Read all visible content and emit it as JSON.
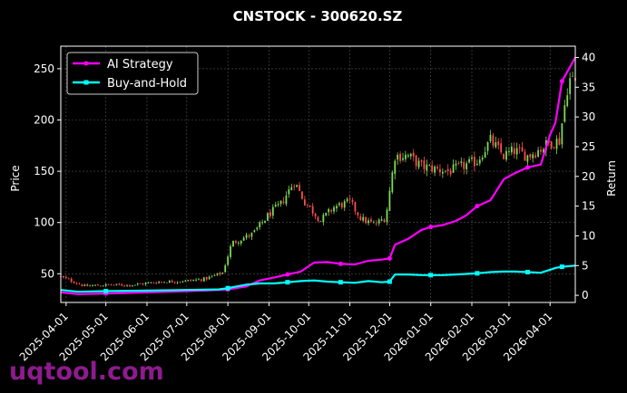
{
  "chart_data": {
    "type": "line",
    "title": "CNSTOCK - 300620.SZ",
    "watermark": "uqtool.com",
    "ylabel_left": "Price",
    "ylabel_right": "Return",
    "ylim_left": [
      22,
      272
    ],
    "ylim_right": [
      -1.2,
      41.9
    ],
    "yticks_left": [
      50,
      100,
      150,
      200,
      250
    ],
    "yticks_right": [
      0,
      5,
      10,
      15,
      20,
      25,
      30,
      35,
      40
    ],
    "xlim": [
      "2025-03-28",
      "2026-04-20"
    ],
    "xticks": [
      "2025-04-01",
      "2025-05-01",
      "2025-06-01",
      "2025-07-01",
      "2025-08-01",
      "2025-09-01",
      "2025-10-01",
      "2025-11-01",
      "2025-12-01",
      "2026-01-01",
      "2026-02-01",
      "2026-03-01",
      "2026-04-01"
    ],
    "grid": true,
    "legend_position": "top-left",
    "colors": {
      "ai": "#ff00ff",
      "bh": "#00ffff",
      "up": "#7ed957",
      "down": "#ff4d4d"
    },
    "series": [
      {
        "name": "AI Strategy",
        "x": [
          "2025-03-28",
          "2025-04-10",
          "2025-05-01",
          "2025-06-01",
          "2025-07-01",
          "2025-07-25",
          "2025-08-01",
          "2025-08-15",
          "2025-08-25",
          "2025-09-05",
          "2025-09-15",
          "2025-09-25",
          "2025-10-05",
          "2025-10-15",
          "2025-10-25",
          "2025-11-05",
          "2025-11-15",
          "2025-11-25",
          "2025-12-01",
          "2025-12-05",
          "2025-12-15",
          "2025-12-25",
          "2026-01-01",
          "2026-01-10",
          "2026-01-20",
          "2026-01-28",
          "2026-02-05",
          "2026-02-15",
          "2026-02-25",
          "2026-03-05",
          "2026-03-15",
          "2026-03-25",
          "2026-04-01",
          "2026-04-05",
          "2026-04-10",
          "2026-04-20"
        ],
        "values": [
          0.5,
          0.2,
          0.3,
          0.5,
          0.7,
          0.9,
          1.0,
          1.5,
          2.5,
          3.0,
          3.5,
          4.0,
          5.5,
          5.6,
          5.3,
          5.2,
          5.8,
          6.0,
          6.2,
          8.5,
          9.5,
          11.0,
          11.5,
          11.8,
          12.5,
          13.5,
          15.0,
          16.0,
          19.5,
          20.5,
          21.5,
          22.0,
          27.0,
          29.0,
          36.0,
          40.0
        ]
      },
      {
        "name": "Buy-and-Hold",
        "x": [
          "2025-03-28",
          "2025-04-10",
          "2025-05-01",
          "2025-06-01",
          "2025-07-01",
          "2025-07-25",
          "2025-08-01",
          "2025-08-15",
          "2025-08-25",
          "2025-09-05",
          "2025-09-15",
          "2025-09-25",
          "2025-10-05",
          "2025-10-15",
          "2025-10-25",
          "2025-11-05",
          "2025-11-15",
          "2025-11-25",
          "2025-12-01",
          "2025-12-05",
          "2025-12-15",
          "2025-12-25",
          "2026-01-01",
          "2026-01-10",
          "2026-01-20",
          "2026-01-28",
          "2026-02-05",
          "2026-02-15",
          "2026-02-25",
          "2026-03-05",
          "2026-03-15",
          "2026-03-25",
          "2026-04-01",
          "2026-04-05",
          "2026-04-10",
          "2026-04-20"
        ],
        "values": [
          0.9,
          0.6,
          0.7,
          0.8,
          0.9,
          1.0,
          1.2,
          1.8,
          2.0,
          2.0,
          2.2,
          2.4,
          2.5,
          2.3,
          2.2,
          2.1,
          2.4,
          2.2,
          2.3,
          3.5,
          3.5,
          3.4,
          3.4,
          3.4,
          3.5,
          3.6,
          3.7,
          3.9,
          4.0,
          4.0,
          3.9,
          3.8,
          4.3,
          4.6,
          4.8,
          5.0
        ]
      }
    ],
    "price": {
      "name": "Price",
      "x": [
        "2025-03-28",
        "2025-04-15",
        "2025-05-01",
        "2025-05-20",
        "2025-06-10",
        "2025-07-01",
        "2025-07-15",
        "2025-07-28",
        "2025-08-04",
        "2025-08-20",
        "2025-09-01",
        "2025-09-10",
        "2025-09-20",
        "2025-09-28",
        "2025-10-10",
        "2025-10-20",
        "2025-11-01",
        "2025-11-10",
        "2025-11-20",
        "2025-11-28",
        "2025-12-05",
        "2025-12-15",
        "2025-12-25",
        "2026-01-05",
        "2026-01-15",
        "2026-01-25",
        "2026-02-05",
        "2026-02-15",
        "2026-02-25",
        "2026-03-05",
        "2026-03-15",
        "2026-03-25",
        "2026-04-01",
        "2026-04-08",
        "2026-04-15",
        "2026-04-20"
      ],
      "values": [
        47,
        38,
        39,
        39,
        42,
        43,
        45,
        51,
        80,
        89,
        108,
        118,
        140,
        120,
        102,
        115,
        120,
        103,
        98,
        105,
        165,
        165,
        155,
        152,
        150,
        155,
        160,
        180,
        165,
        170,
        165,
        172,
        178,
        180,
        240,
        238
      ]
    }
  }
}
